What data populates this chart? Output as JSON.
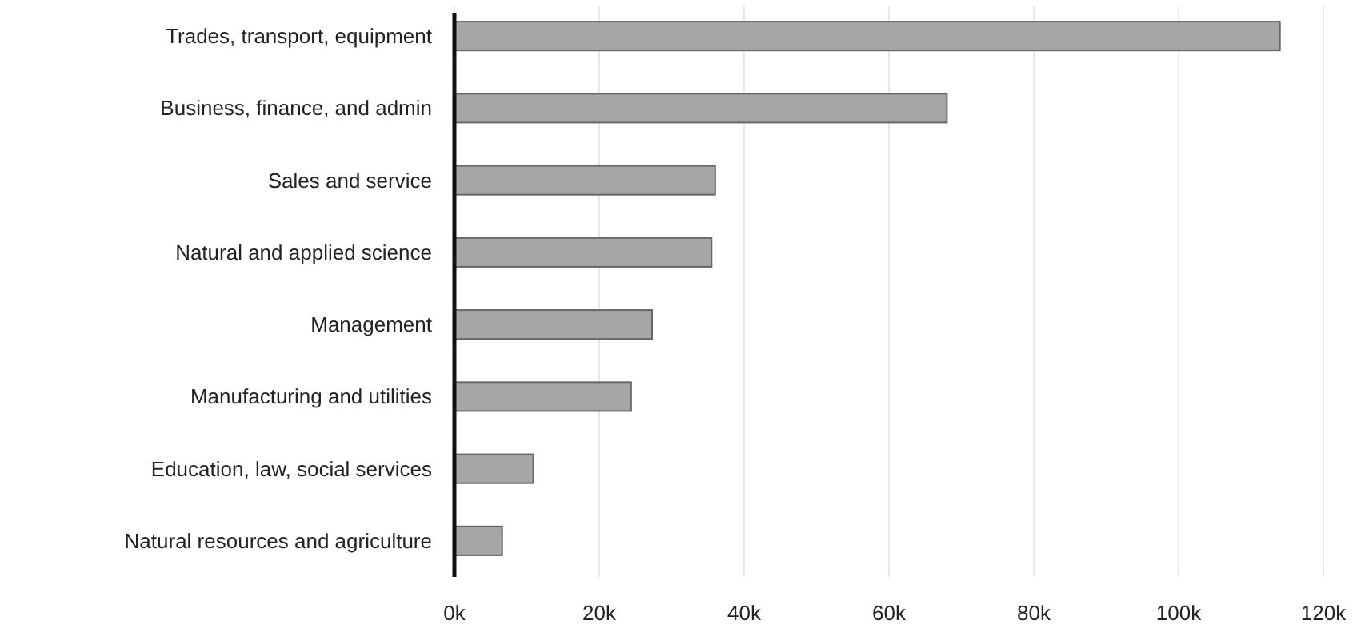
{
  "chart_data": {
    "type": "bar",
    "orientation": "horizontal",
    "categories": [
      "Trades, transport, equipment",
      "Business, finance, and admin",
      "Sales and service",
      "Natural and applied science",
      "Management",
      "Manufacturing and utilities",
      "Education, law, social services",
      "Natural resources and agriculture"
    ],
    "values": [
      114000,
      68000,
      36000,
      35500,
      27300,
      24400,
      10900,
      6600
    ],
    "color": "#a6a6a6",
    "xlim": [
      0,
      120000
    ],
    "xticks": [
      {
        "value": 0,
        "label": "0k"
      },
      {
        "value": 20000,
        "label": "20k"
      },
      {
        "value": 40000,
        "label": "40k"
      },
      {
        "value": 60000,
        "label": "60k"
      },
      {
        "value": 80000,
        "label": "80k"
      },
      {
        "value": 100000,
        "label": "100k"
      },
      {
        "value": 120000,
        "label": "120k"
      }
    ],
    "grid": "x"
  }
}
